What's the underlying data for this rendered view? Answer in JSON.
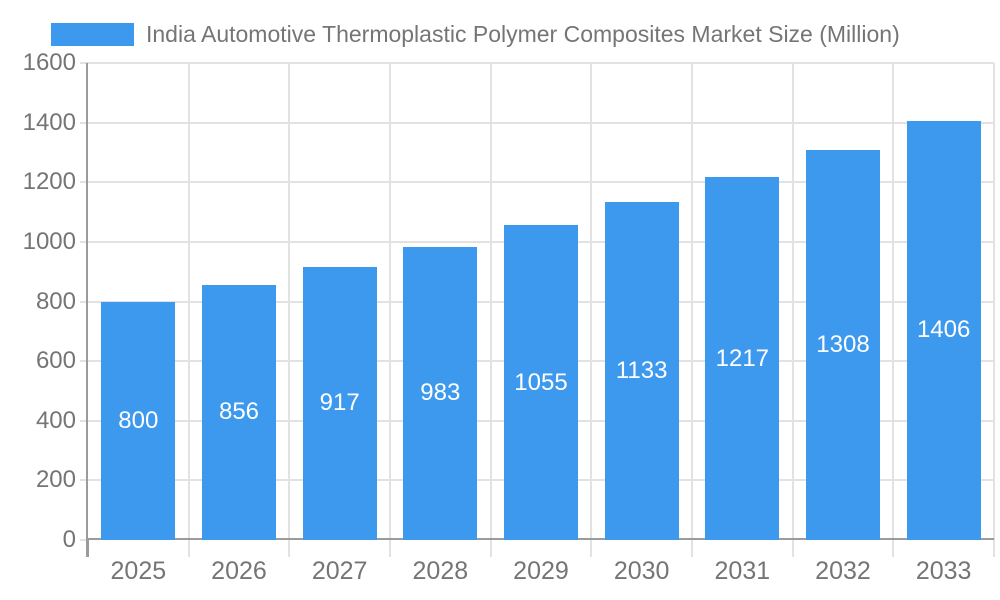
{
  "legend": {
    "label": "India Automotive Thermoplastic Polymer Composites Market Size (Million)"
  },
  "chart_data": {
    "type": "bar",
    "title": "India Automotive Thermoplastic Polymer Composites Market Size (Million)",
    "categories": [
      "2025",
      "2026",
      "2027",
      "2028",
      "2029",
      "2030",
      "2031",
      "2032",
      "2033"
    ],
    "values": [
      800,
      856,
      917,
      983,
      1055,
      1133,
      1217,
      1308,
      1406
    ],
    "xlabel": "",
    "ylabel": "",
    "ylim": [
      0,
      1600
    ],
    "yticks": [
      0,
      200,
      400,
      600,
      800,
      1000,
      1200,
      1400,
      1600
    ],
    "grid": true,
    "legend_position": "top-left",
    "value_label_position": "inside-center"
  },
  "colors": {
    "bar": "#3D99EE",
    "grid": "#E2E2E2",
    "axis": "#9B9B9B",
    "text": "#757575",
    "value_label": "#FFFFFF",
    "background": "#FFFFFF"
  }
}
